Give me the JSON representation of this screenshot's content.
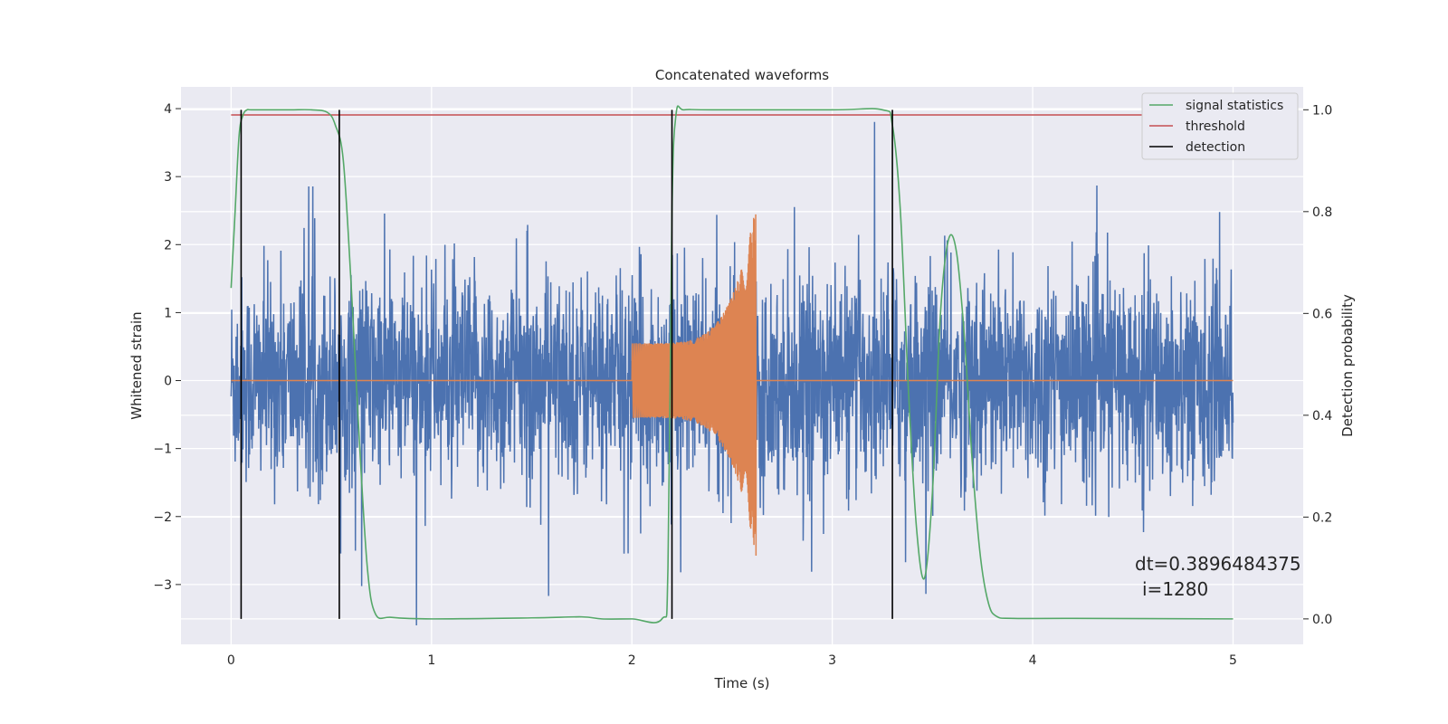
{
  "chart_data": {
    "type": "line",
    "title": "Concatenated waveforms",
    "xlabel": "Time (s)",
    "ylabel": "Whitened strain",
    "y2label": "Detection probability",
    "xlim": [
      -0.25,
      5.35
    ],
    "ylim": [
      -3.88,
      4.32
    ],
    "y2lim": [
      -0.05,
      1.045
    ],
    "xticks": [
      0,
      1,
      2,
      3,
      4,
      5
    ],
    "yticks": [
      -3,
      -2,
      -1,
      0,
      1,
      2,
      3,
      4
    ],
    "y2ticks": [
      0.0,
      0.2,
      0.4,
      0.6,
      0.8,
      1.0
    ],
    "xtick_labels": [
      "0",
      "1",
      "2",
      "3",
      "4",
      "5"
    ],
    "ytick_labels": [
      "−3",
      "−2",
      "−1",
      "0",
      "1",
      "2",
      "3",
      "4"
    ],
    "y2tick_labels": [
      "0.0",
      "0.2",
      "0.4",
      "0.6",
      "0.8",
      "1.0"
    ],
    "grid": true,
    "legend": {
      "placement": "top-right",
      "entries": [
        {
          "label": "signal statistics",
          "color": "#55a868"
        },
        {
          "label": "threshold",
          "color": "#c44e52"
        },
        {
          "label": "detection",
          "color": "#000000"
        }
      ]
    },
    "series": [
      {
        "name": "strain",
        "color": "#4c72b0",
        "axis": "left",
        "style": "noise",
        "x_range": [
          0,
          5
        ],
        "amplitude_sigma": 0.75
      },
      {
        "name": "template",
        "color": "#dd8452",
        "axis": "left",
        "style": "chirp",
        "x_start": 2.0,
        "x_end": 2.62,
        "amplitude_start": 0.55,
        "amplitude_peak": 2.6
      },
      {
        "name": "signal statistics",
        "color": "#55a868",
        "axis": "right",
        "x": [
          0.0,
          0.02,
          0.04,
          0.06,
          0.08,
          0.1,
          0.2,
          0.3,
          0.4,
          0.48,
          0.52,
          0.56,
          0.6,
          0.64,
          0.68,
          0.72,
          0.8,
          1.0,
          1.5,
          1.75,
          1.85,
          2.0,
          2.15,
          2.18,
          2.2,
          2.22,
          2.26,
          2.4,
          3.0,
          3.25,
          3.3,
          3.34,
          3.38,
          3.42,
          3.46,
          3.5,
          3.54,
          3.58,
          3.62,
          3.66,
          3.7,
          3.74,
          3.78,
          3.82,
          3.9,
          4.2,
          5.0
        ],
        "y": [
          0.65,
          0.8,
          0.95,
          0.99,
          1.0,
          1.0,
          1.0,
          1.0,
          1.0,
          0.995,
          0.97,
          0.9,
          0.65,
          0.35,
          0.1,
          0.01,
          0.003,
          0.0,
          0.002,
          0.004,
          0.0,
          0.0,
          0.0,
          0.1,
          0.8,
          0.99,
          1.0,
          1.0,
          1.0,
          1.0,
          0.97,
          0.8,
          0.45,
          0.18,
          0.08,
          0.25,
          0.6,
          0.745,
          0.72,
          0.55,
          0.3,
          0.12,
          0.03,
          0.005,
          0.001,
          0.001,
          0.0
        ]
      },
      {
        "name": "threshold",
        "color": "#c44e52",
        "axis": "right",
        "y": 0.99,
        "x_range": [
          0,
          5
        ]
      }
    ],
    "detections": [
      0.05,
      0.54,
      2.2,
      3.3
    ],
    "annotation": {
      "line1": "dt=0.3896484375",
      "line2": "i=1280"
    }
  }
}
